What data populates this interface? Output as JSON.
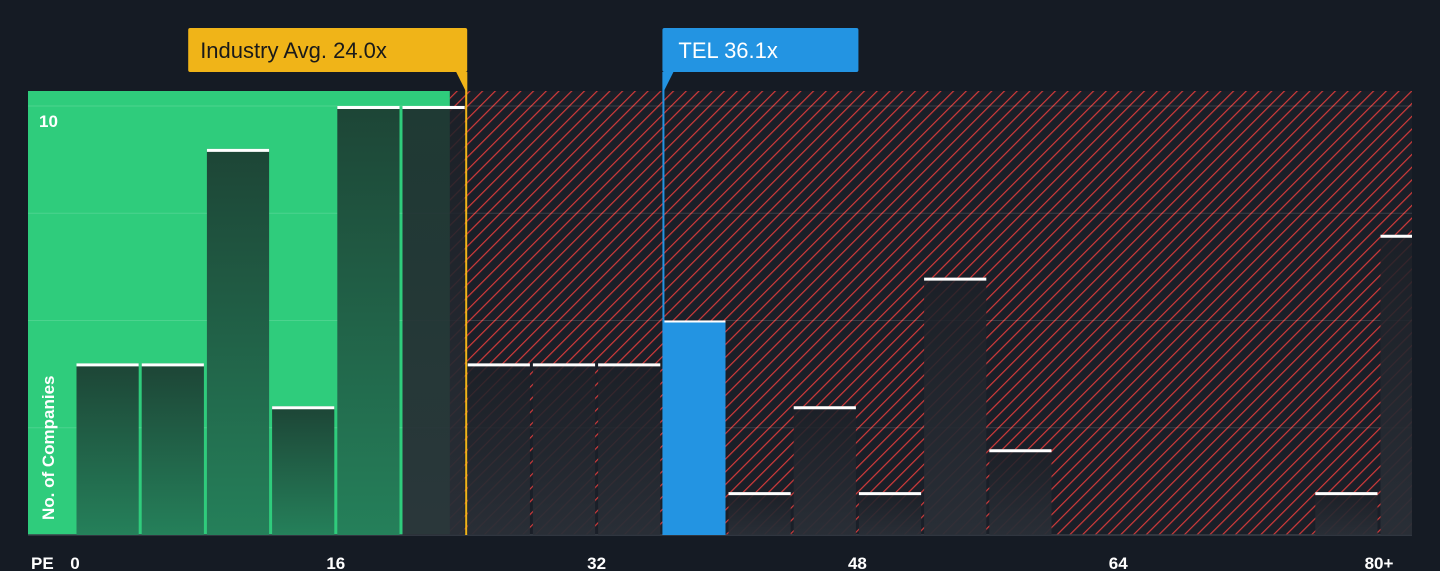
{
  "chart_data": {
    "type": "bar",
    "x_axis_label": "PE",
    "y_axis_label": "No. of Companies",
    "x_ticks": [
      "0",
      "16",
      "32",
      "48",
      "64",
      "80+"
    ],
    "x_tick_values": [
      0,
      16,
      32,
      48,
      64,
      80
    ],
    "y_tick_label": "10",
    "y_tick_value": 10,
    "xlim": [
      0,
      80
    ],
    "ylim": [
      0,
      10.35
    ],
    "bin_width": 4,
    "bins": [
      {
        "x0": 0,
        "count": 4
      },
      {
        "x0": 4,
        "count": 4
      },
      {
        "x0": 8,
        "count": 9
      },
      {
        "x0": 12,
        "count": 3
      },
      {
        "x0": 16,
        "count": 10
      },
      {
        "x0": 20,
        "count": 10
      },
      {
        "x0": 24,
        "count": 4
      },
      {
        "x0": 28,
        "count": 4
      },
      {
        "x0": 32,
        "count": 4
      },
      {
        "x0": 36,
        "count": 5,
        "highlight": true
      },
      {
        "x0": 40,
        "count": 1
      },
      {
        "x0": 44,
        "count": 3
      },
      {
        "x0": 48,
        "count": 1
      },
      {
        "x0": 52,
        "count": 6
      },
      {
        "x0": 56,
        "count": 2
      },
      {
        "x0": 60,
        "count": 0
      },
      {
        "x0": 64,
        "count": 0
      },
      {
        "x0": 68,
        "count": 0
      },
      {
        "x0": 72,
        "count": 0
      },
      {
        "x0": 76,
        "count": 1
      },
      {
        "x0": 80,
        "count": 7
      }
    ],
    "industry_avg": {
      "label": "Industry Avg. 24.0x",
      "value": 24.0
    },
    "company": {
      "label": "TEL 36.1x",
      "value": 36.1
    },
    "below_avg_region_end": 23.0,
    "colors": {
      "background": "#151b24",
      "green_region": "#2fcc7c",
      "green_bar": "#1f4a3a",
      "red_hatch": "#d23a3a",
      "dark_bar": "#1e2229",
      "highlight_bar": "#2394e2",
      "industry_callout": "#f0b418",
      "company_callout": "#2394e2",
      "bar_top": "#ffffff",
      "gridline": "#ffffff"
    }
  }
}
